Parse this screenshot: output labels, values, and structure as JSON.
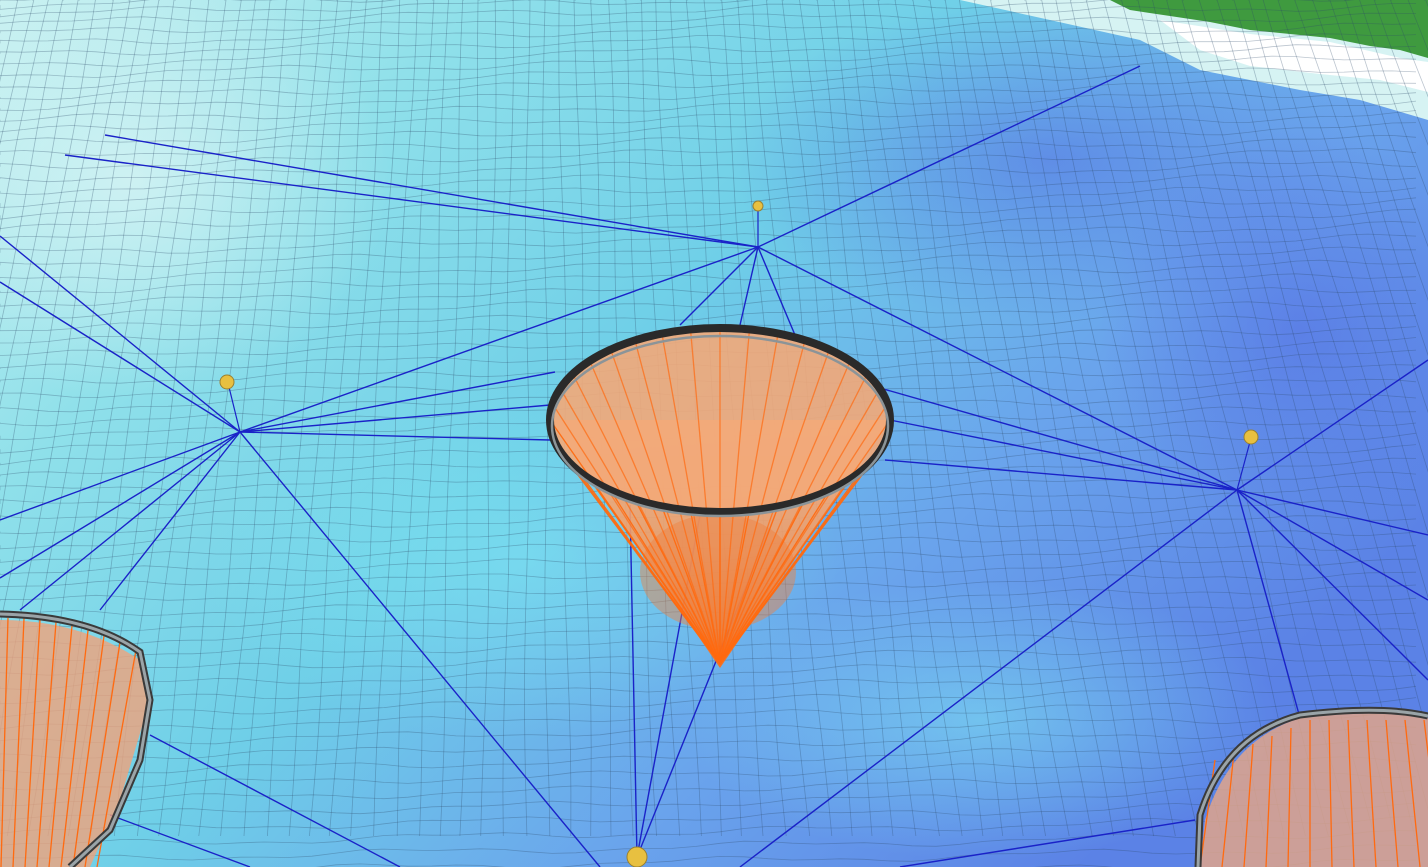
{
  "scene": {
    "description_hidden": "",
    "colors": {
      "seabed_light": "#bfeeee",
      "seabed_cyan": "#6fd6ea",
      "seabed_blue": "#5f8fe6",
      "seabed_deep": "#4a6ee0",
      "mesh_line": "#3a4a6a",
      "mooring_line": "#1a22c8",
      "cone_fill": "#f5a070",
      "cone_line": "#ff6a10",
      "cone_rim": "#2a2a2a",
      "buoy": "#e8c040",
      "land": "#3f9a3f",
      "water_edge": "#d8f4f4"
    },
    "icons": {
      "fish_cage": "cone-net-icon",
      "buoy": "buoy-icon",
      "anchor_line": "mooring-line-icon"
    }
  }
}
